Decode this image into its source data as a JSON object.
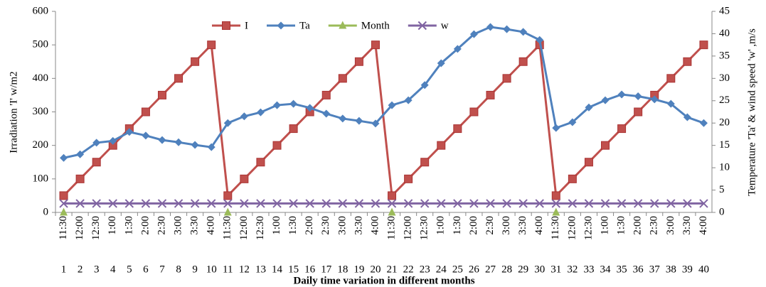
{
  "chart_data": {
    "type": "line",
    "categories": [
      "11:30",
      "12:00",
      "12:30",
      "1:00",
      "1:30",
      "2:00",
      "2:30",
      "3:00",
      "3:30",
      "4:00",
      "11:30",
      "12:00",
      "12:30",
      "1:00",
      "1:30",
      "2:00",
      "2:30",
      "3:00",
      "3:30",
      "4:00",
      "11:30",
      "12:00",
      "12:30",
      "1:00",
      "1:30",
      "2:00",
      "2:30",
      "3:00",
      "3:30",
      "4:00",
      "11:30",
      "12:00",
      "12:30",
      "1:00",
      "1:30",
      "2:00",
      "2:30",
      "3:00",
      "3:30",
      "4:00"
    ],
    "category_numbers": [
      1,
      2,
      3,
      4,
      5,
      6,
      7,
      8,
      9,
      10,
      11,
      12,
      13,
      14,
      15,
      16,
      17,
      18,
      19,
      20,
      21,
      22,
      23,
      24,
      25,
      26,
      27,
      28,
      29,
      30,
      31,
      32,
      33,
      34,
      35,
      36,
      37,
      38,
      39,
      40
    ],
    "x_label": "Daily time variation in different months",
    "y_label": "Irradiation 'I' w/m2",
    "y2_label": "Temperature 'Ta' & wind speed 'w' ,m/s",
    "ylim": [
      0,
      600
    ],
    "yticks": [
      0,
      100,
      200,
      300,
      400,
      500,
      600
    ],
    "y2lim": [
      0,
      45
    ],
    "y2ticks": [
      0,
      5,
      10,
      15,
      20,
      25,
      30,
      35,
      40,
      45
    ],
    "grid": false,
    "legend": "top",
    "series": [
      {
        "name": "I",
        "color": "#c0504d",
        "marker": "square",
        "values": [
          50,
          100,
          150,
          200,
          250,
          300,
          350,
          400,
          450,
          500,
          50,
          100,
          150,
          200,
          250,
          300,
          350,
          400,
          450,
          500,
          50,
          100,
          150,
          200,
          250,
          300,
          350,
          400,
          450,
          500,
          50,
          100,
          150,
          200,
          250,
          300,
          350,
          400,
          450,
          500
        ]
      },
      {
        "name": "Ta",
        "color": "#4f81bd",
        "marker": "diamond",
        "axis": "y2",
        "values": [
          12.2,
          13,
          15.6,
          16,
          18,
          17.2,
          16.2,
          15.7,
          15.1,
          14.6,
          20,
          21.5,
          22.4,
          24,
          24.3,
          23.4,
          22.1,
          21,
          20.5,
          19.9,
          24,
          25.1,
          28.5,
          33.4,
          36.6,
          39.9,
          41.5,
          41,
          40.4,
          38.6,
          18.9,
          20.2,
          23.5,
          25.1,
          26.4,
          26,
          25.3,
          24.3,
          21.3,
          20
        ]
      },
      {
        "name": "Month",
        "color": "#9bbb59",
        "marker": "triangle",
        "axis": "y2",
        "values": [
          0,
          null,
          null,
          null,
          null,
          null,
          null,
          null,
          null,
          null,
          0,
          null,
          null,
          null,
          null,
          null,
          null,
          null,
          null,
          null,
          0,
          null,
          null,
          null,
          null,
          null,
          null,
          null,
          null,
          null,
          0,
          null,
          null,
          null,
          null,
          null,
          null,
          null,
          null,
          null
        ]
      },
      {
        "name": "w",
        "color": "#8064a2",
        "marker": "x",
        "axis": "y2",
        "values": [
          2,
          2,
          2,
          2,
          2,
          2,
          2,
          2,
          2,
          2,
          2,
          2,
          2,
          2,
          2,
          2,
          2,
          2,
          2,
          2,
          2,
          2,
          2,
          2,
          2,
          2,
          2,
          2,
          2,
          2,
          2,
          2,
          2,
          2,
          2,
          2,
          2,
          2,
          2,
          2
        ]
      }
    ]
  }
}
